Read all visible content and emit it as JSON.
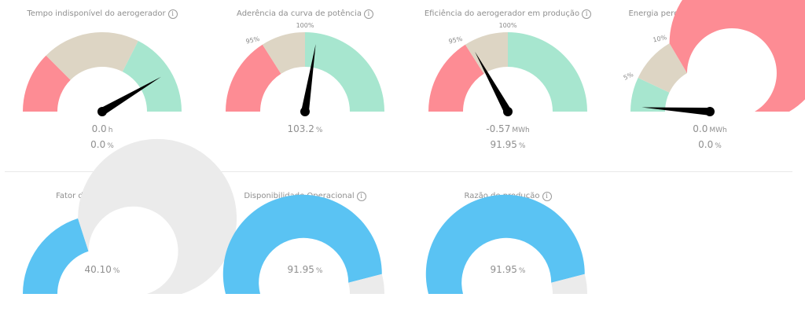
{
  "colors": {
    "red": "#fd8c94",
    "beige": "#ddd5c4",
    "green": "#a7e6cf",
    "blue": "#5ac3f3",
    "grey": "#ebebeb",
    "needle": "#000000"
  },
  "gauges": [
    {
      "title": "Tempo indisponível do aerogerador",
      "info_icon": "info-icon",
      "segments": [
        {
          "from": 0,
          "to": 0.25,
          "color": "red"
        },
        {
          "from": 0.25,
          "to": 0.65,
          "color": "beige"
        },
        {
          "from": 0.65,
          "to": 1,
          "color": "green"
        }
      ],
      "needle": 0.83,
      "tick_labels": [],
      "value1": "0.0",
      "unit1": "h",
      "value2": "0.0",
      "unit2": "%"
    },
    {
      "title": "Aderência da curva de potência",
      "info_icon": "info-icon",
      "segments": [
        {
          "from": 0,
          "to": 0.32,
          "color": "red"
        },
        {
          "from": 0.32,
          "to": 0.5,
          "color": "beige"
        },
        {
          "from": 0.5,
          "to": 1,
          "color": "green"
        }
      ],
      "needle": 0.55,
      "tick_labels": [
        {
          "text": "95%",
          "at": 0.32
        },
        {
          "text": "100%",
          "at": 0.5
        }
      ],
      "value1": "103.2",
      "unit1": "%",
      "value2": "",
      "unit2": ""
    },
    {
      "title": "Eficiência do aerogerador em produção",
      "info_icon": "info-icon",
      "segments": [
        {
          "from": 0,
          "to": 0.32,
          "color": "red"
        },
        {
          "from": 0.32,
          "to": 0.5,
          "color": "beige"
        },
        {
          "from": 0.5,
          "to": 1,
          "color": "green"
        }
      ],
      "needle": 0.34,
      "tick_labels": [
        {
          "text": "95%",
          "at": 0.32
        },
        {
          "text": "100%",
          "at": 0.5
        }
      ],
      "value1": "-0.57",
      "unit1": "MWh",
      "value2": "91.95",
      "unit2": "%"
    },
    {
      "title": "Energia perdida por indisponibilidades",
      "info_icon": "info-icon",
      "segments": [
        {
          "from": 0,
          "to": 0.14,
          "color": "green"
        },
        {
          "from": 0.14,
          "to": 0.33,
          "color": "beige"
        },
        {
          "from": 0.33,
          "to": 1,
          "color": "red"
        }
      ],
      "needle": 0.02,
      "tick_labels": [
        {
          "text": "5%",
          "at": 0.14
        },
        {
          "text": "10%",
          "at": 0.33
        }
      ],
      "value1": "0.0",
      "unit1": "MWh",
      "value2": "0.0",
      "unit2": "%"
    },
    {
      "title": "Fator de Capacidade",
      "info_icon": "info-icon",
      "segments": [
        {
          "from": 0,
          "to": 0.401,
          "color": "blue"
        },
        {
          "from": 0.401,
          "to": 1,
          "color": "grey"
        }
      ],
      "needle": null,
      "tick_labels": [],
      "value1": "40.10",
      "unit1": "%",
      "value2": "",
      "unit2": ""
    },
    {
      "title": "Disponibilidade Operacional",
      "info_icon": "info-icon",
      "segments": [
        {
          "from": 0,
          "to": 0.9195,
          "color": "blue"
        },
        {
          "from": 0.9195,
          "to": 1,
          "color": "grey"
        }
      ],
      "needle": null,
      "tick_labels": [],
      "value1": "91.95",
      "unit1": "%",
      "value2": "",
      "unit2": ""
    },
    {
      "title": "Razão de produção",
      "info_icon": "info-icon",
      "segments": [
        {
          "from": 0,
          "to": 0.9195,
          "color": "blue"
        },
        {
          "from": 0.9195,
          "to": 1,
          "color": "grey"
        }
      ],
      "needle": null,
      "tick_labels": [],
      "value1": "91.95",
      "unit1": "%",
      "value2": "",
      "unit2": ""
    }
  ]
}
